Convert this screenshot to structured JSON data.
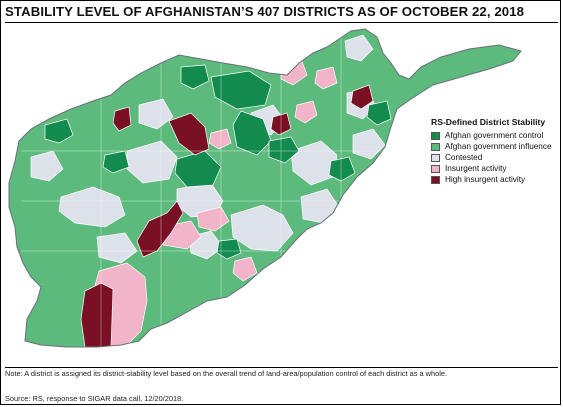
{
  "title": "STABILITY LEVEL OF AFGHANISTAN’S 407 DISTRICTS AS OF OCTOBER 22, 2018",
  "legend": {
    "title": "RS-Defined District Stability",
    "items": [
      {
        "key": "control",
        "label": "Afghan government control",
        "color": "#138a4e"
      },
      {
        "key": "influence",
        "label": "Afghan government influence",
        "color": "#5cba7d"
      },
      {
        "key": "contested",
        "label": "Contested",
        "color": "#dde1ea"
      },
      {
        "key": "insurgent",
        "label": "Insurgent activity",
        "color": "#f2b4c8"
      },
      {
        "key": "high",
        "label": "High insurgent activity",
        "color": "#7a1024"
      }
    ]
  },
  "note": "Note: A district is assigned its district-stability level based on the overall trend of land-area/population control of each district as a whole.",
  "source": "Source: RS, response to SIGAR data call, 12/20/2018."
}
